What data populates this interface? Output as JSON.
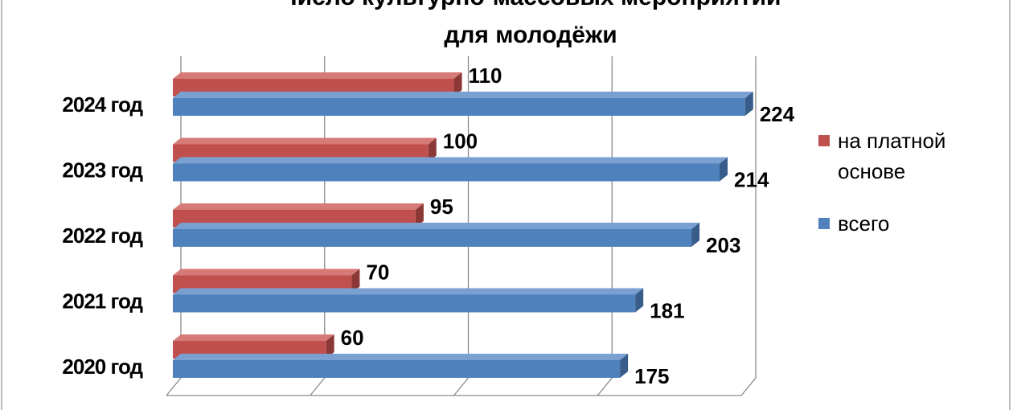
{
  "chart_data": {
    "type": "bar3d",
    "title": [
      "Число культурно-массовых мероприятий",
      "для молодёжи"
    ],
    "categories": [
      "2020 год",
      "2021 год",
      "2022 год",
      "2023 год",
      "2024 год"
    ],
    "series": [
      {
        "name": "на платной основе",
        "color": "#c0504d",
        "values": [
          60,
          70,
          95,
          100,
          110
        ]
      },
      {
        "name": "всего",
        "color": "#4f81bd",
        "values": [
          175,
          181,
          203,
          214,
          224
        ]
      }
    ],
    "xlim": [
      0,
      225
    ],
    "xticks": [
      0,
      56.25,
      112.5,
      168.75,
      225
    ],
    "grid": true,
    "legend": "right"
  }
}
